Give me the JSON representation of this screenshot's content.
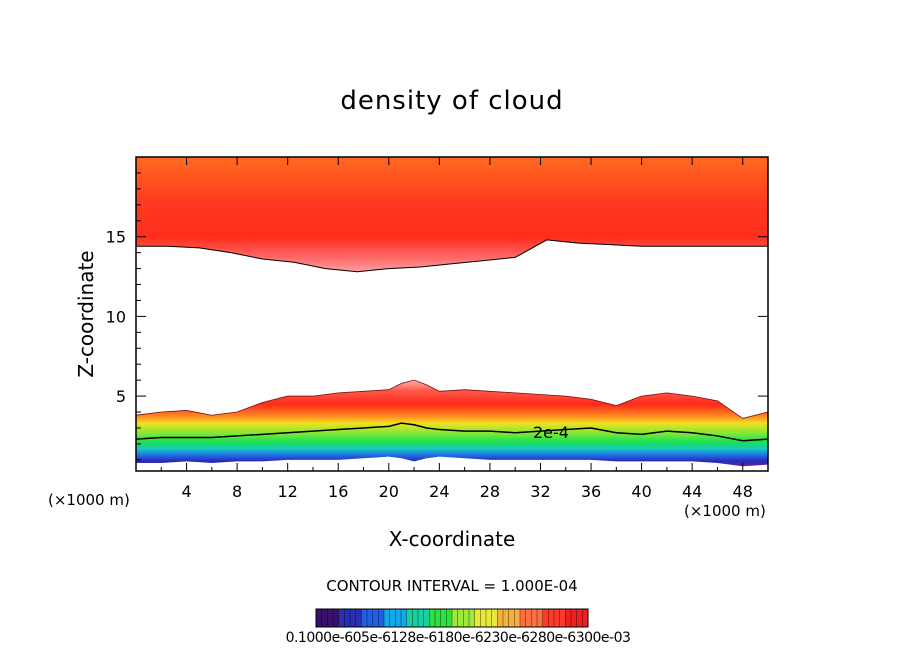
{
  "chart_data": {
    "type": "heatmap",
    "title": "density of cloud",
    "xlabel": "X-coordinate",
    "ylabel": "Z-coordinate",
    "x_unit": "(×1000 m)",
    "z_unit": "(×1000 m)",
    "xlim": [
      0,
      50
    ],
    "ylim": [
      0.3,
      20
    ],
    "x_ticks": [
      4,
      8,
      12,
      16,
      20,
      24,
      28,
      32,
      36,
      40,
      44,
      48
    ],
    "y_ticks": [
      5,
      10,
      15
    ],
    "contour_interval_text": "CONTOUR INTERVAL = 1.000E-04",
    "contour_label": "2e-4",
    "colorbar_labels_text": "0.1000e-605e-6128e-6180e-6230e-6280e-6300e-03",
    "colorbar_colors": [
      "#3a0f6e",
      "#2a2fb0",
      "#1f5fe0",
      "#14a8e8",
      "#18d0a0",
      "#2ee040",
      "#9ee83a",
      "#e8e83a",
      "#f5b040",
      "#ff7040",
      "#ff3a28",
      "#f02020"
    ],
    "upper_layer": {
      "base_z": [
        14.4,
        14.4,
        14.3,
        14.0,
        13.6,
        13.4,
        13.0,
        12.8,
        13.0,
        13.1,
        13.3,
        13.5,
        13.7,
        14.8,
        14.6,
        14.5,
        14.4,
        14.4,
        14.4,
        14.4,
        14.4
      ],
      "base_x": [
        0,
        2.5,
        5,
        7.5,
        10,
        12.5,
        15,
        17.5,
        20,
        22.5,
        25,
        27.5,
        30,
        32.5,
        35,
        37.5,
        40,
        42.5,
        45,
        47.5,
        50
      ],
      "top_z": 20
    },
    "lower_layer": {
      "x": [
        0,
        2,
        4,
        6,
        8,
        10,
        12,
        14,
        16,
        18,
        20,
        21,
        22,
        23,
        24,
        26,
        28,
        30,
        32,
        34,
        36,
        38,
        40,
        42,
        44,
        46,
        48,
        50
      ],
      "top_z": [
        3.8,
        4.0,
        4.1,
        3.8,
        4.0,
        4.6,
        5.0,
        5.0,
        5.2,
        5.3,
        5.4,
        5.8,
        6.0,
        5.7,
        5.3,
        5.4,
        5.3,
        5.2,
        5.1,
        5.0,
        4.8,
        4.4,
        5.0,
        5.2,
        5.0,
        4.7,
        3.6,
        4.0
      ],
      "contour_2e4_z": [
        2.3,
        2.4,
        2.4,
        2.4,
        2.5,
        2.6,
        2.7,
        2.8,
        2.9,
        3.0,
        3.1,
        3.3,
        3.2,
        3.0,
        2.9,
        2.8,
        2.8,
        2.7,
        2.8,
        2.9,
        3.0,
        2.7,
        2.6,
        2.8,
        2.7,
        2.5,
        2.2,
        2.3
      ],
      "base_z": [
        0.8,
        0.8,
        0.9,
        0.8,
        0.9,
        0.9,
        1.0,
        1.0,
        1.0,
        1.1,
        1.2,
        1.1,
        0.9,
        1.1,
        1.2,
        1.1,
        1.0,
        1.0,
        1.0,
        1.0,
        1.0,
        0.9,
        0.9,
        0.9,
        0.9,
        0.8,
        0.6,
        0.7
      ]
    }
  }
}
